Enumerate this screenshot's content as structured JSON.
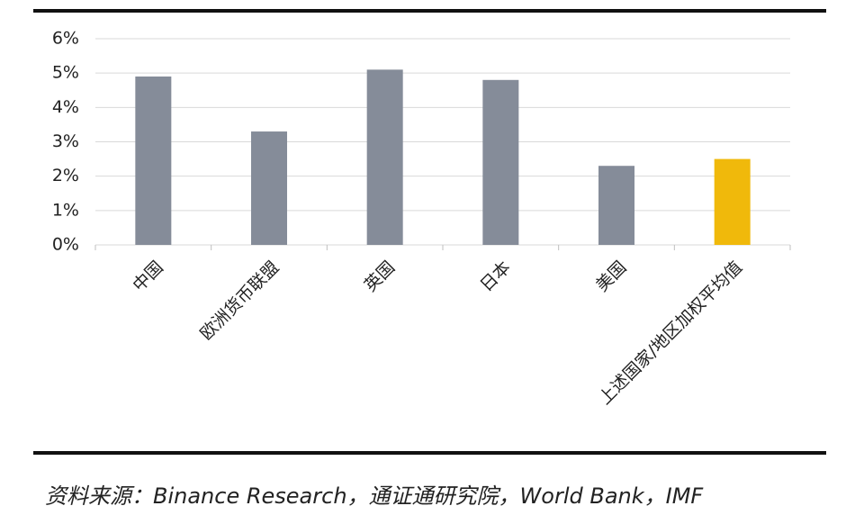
{
  "chart_data": {
    "type": "bar",
    "categories": [
      "中国",
      "欧洲货币联盟",
      "英国",
      "日本",
      "美国",
      "上述国家/地区加权平均值"
    ],
    "values": [
      4.9,
      3.3,
      5.1,
      4.8,
      2.3,
      2.5
    ],
    "colors": [
      "#858c99",
      "#858c99",
      "#858c99",
      "#858c99",
      "#858c99",
      "#f0b90b"
    ],
    "ylim": [
      0,
      6
    ],
    "yticks": [
      {
        "value": 0,
        "label": "0%"
      },
      {
        "value": 1,
        "label": "1%"
      },
      {
        "value": 2,
        "label": "2%"
      },
      {
        "value": 3,
        "label": "3%"
      },
      {
        "value": 4,
        "label": "4%"
      },
      {
        "value": 5,
        "label": "5%"
      },
      {
        "value": 6,
        "label": "6%"
      }
    ],
    "grid": true,
    "source": "资料来源：Binance Research，通证通研究院，World Bank，IMF"
  }
}
